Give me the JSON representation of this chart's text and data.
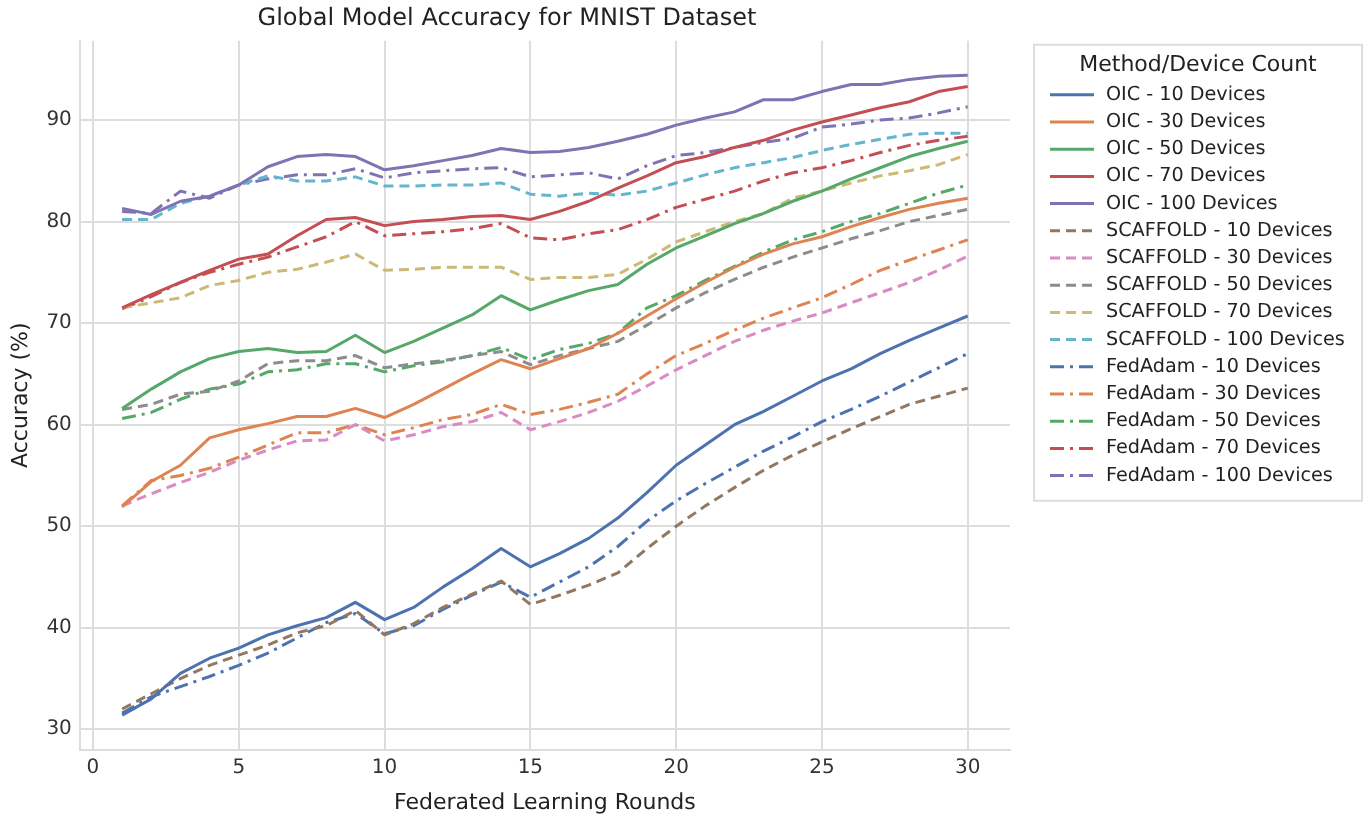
{
  "chart_data": {
    "type": "line",
    "title": "Global Model Accuracy for MNIST Dataset",
    "xlabel": "Federated Learning Rounds",
    "ylabel": "Accuracy (%)",
    "legend_title": "Method/Device Count",
    "x": [
      1,
      2,
      3,
      4,
      5,
      6,
      7,
      8,
      9,
      10,
      11,
      12,
      13,
      14,
      15,
      16,
      17,
      18,
      19,
      20,
      21,
      22,
      23,
      24,
      25,
      26,
      27,
      28,
      29,
      30
    ],
    "xlim": [
      -0.45,
      31.45
    ],
    "xticks": [
      0,
      5,
      10,
      15,
      20,
      25,
      30
    ],
    "ylim": [
      28,
      97.8
    ],
    "yticks": [
      30,
      40,
      50,
      60,
      70,
      80,
      90
    ],
    "grid": true,
    "legend": "right",
    "marker": "none",
    "series": [
      {
        "name": "OIC - 10 Devices",
        "color": "#4c72b0",
        "line_style": "solid",
        "values": [
          31.4,
          33,
          35.5,
          37,
          38,
          39.3,
          40.2,
          41,
          42.5,
          40.8,
          42,
          44,
          45.8,
          47.8,
          46,
          47.3,
          48.8,
          50.8,
          53.3,
          56,
          58,
          60,
          61.3,
          62.8,
          64.3,
          65.5,
          67,
          68.3,
          69.5,
          70.7
        ]
      },
      {
        "name": "OIC - 30 Devices",
        "color": "#dd8452",
        "line_style": "solid",
        "values": [
          51.9,
          54.4,
          56,
          58.7,
          59.5,
          60.1,
          60.8,
          60.8,
          61.6,
          60.7,
          62,
          63.5,
          65,
          66.4,
          65.5,
          66.5,
          67.5,
          69,
          70.7,
          72.4,
          74,
          75.5,
          76.8,
          77.8,
          78.5,
          79.5,
          80.4,
          81.2,
          81.8,
          82.3
        ]
      },
      {
        "name": "OIC - 50 Devices",
        "color": "#55a868",
        "line_style": "solid",
        "values": [
          61.6,
          63.5,
          65.2,
          66.5,
          67.2,
          67.5,
          67.1,
          67.2,
          68.8,
          67.1,
          68.2,
          69.5,
          70.8,
          72.7,
          71.3,
          72.3,
          73.2,
          73.8,
          75.8,
          77.4,
          78.6,
          79.8,
          80.8,
          82,
          83,
          84.2,
          85.3,
          86.4,
          87.2,
          87.9
        ]
      },
      {
        "name": "OIC - 70 Devices",
        "color": "#c44e52",
        "line_style": "solid",
        "values": [
          71.5,
          72.8,
          74,
          75.2,
          76.3,
          76.8,
          78.6,
          80.2,
          80.4,
          79.6,
          80,
          80.2,
          80.5,
          80.6,
          80.2,
          81,
          82,
          83.3,
          84.5,
          85.8,
          86.4,
          87.3,
          88,
          89,
          89.8,
          90.5,
          91.2,
          91.8,
          92.8,
          93.3
        ]
      },
      {
        "name": "OIC - 100 Devices",
        "color": "#8172b3",
        "line_style": "solid",
        "values": [
          81.3,
          80.7,
          82,
          82.5,
          83.6,
          85.4,
          86.4,
          86.6,
          86.4,
          85.1,
          85.5,
          86,
          86.5,
          87.2,
          86.8,
          86.9,
          87.3,
          87.9,
          88.6,
          89.5,
          90.2,
          90.8,
          92,
          92,
          92.8,
          93.5,
          93.5,
          94,
          94.3,
          94.4
        ]
      },
      {
        "name": "SCAFFOLD - 10 Devices",
        "color": "#937860",
        "line_style": "dashed",
        "values": [
          32,
          33.5,
          35,
          36.3,
          37.3,
          38.3,
          39.5,
          40.2,
          41.7,
          39.3,
          40.4,
          42,
          43.3,
          44.6,
          42.3,
          43.2,
          44.2,
          45.4,
          47.8,
          50,
          52,
          53.8,
          55.5,
          57,
          58.3,
          59.6,
          60.8,
          62,
          62.8,
          63.6
        ]
      },
      {
        "name": "SCAFFOLD - 30 Devices",
        "color": "#da8bc3",
        "line_style": "dashed",
        "values": [
          52,
          53.2,
          54.3,
          55.3,
          56.5,
          57.5,
          58.4,
          58.5,
          60,
          58.4,
          59,
          59.8,
          60.3,
          61.2,
          59.5,
          60.3,
          61.2,
          62.3,
          63.8,
          65.4,
          66.8,
          68.2,
          69.3,
          70.2,
          71,
          72,
          73,
          74,
          75.2,
          76.6
        ]
      },
      {
        "name": "SCAFFOLD - 50 Devices",
        "color": "#8c8c8c",
        "line_style": "dashed",
        "values": [
          61.5,
          62,
          63,
          63.3,
          64.3,
          66,
          66.3,
          66.3,
          66.8,
          65.6,
          66,
          66.3,
          66.8,
          67.2,
          65.9,
          66.8,
          67.5,
          68.2,
          69.8,
          71.5,
          73,
          74.3,
          75.5,
          76.5,
          77.4,
          78.3,
          79.1,
          80,
          80.6,
          81.2
        ]
      },
      {
        "name": "SCAFFOLD - 70 Devices",
        "color": "#ccb974",
        "line_style": "dashed",
        "values": [
          71.5,
          72,
          72.5,
          73.7,
          74.2,
          75,
          75.3,
          76,
          76.8,
          75.2,
          75.3,
          75.5,
          75.5,
          75.5,
          74.3,
          74.5,
          74.5,
          74.8,
          76.3,
          78,
          79,
          80,
          80.8,
          82.3,
          83,
          83.8,
          84.5,
          85,
          85.6,
          86.6
        ]
      },
      {
        "name": "SCAFFOLD - 100 Devices",
        "color": "#64b5cd",
        "line_style": "dashed",
        "values": [
          80.2,
          80.2,
          81.8,
          82.5,
          83.6,
          84.5,
          84,
          84,
          84.4,
          83.5,
          83.5,
          83.6,
          83.6,
          83.8,
          82.7,
          82.5,
          82.8,
          82.6,
          83,
          83.8,
          84.6,
          85.3,
          85.8,
          86.3,
          87,
          87.6,
          88.1,
          88.6,
          88.7,
          88.7
        ]
      },
      {
        "name": "FedAdam - 10 Devices",
        "color": "#4c72b0",
        "line_style": "dashdot",
        "values": [
          31.6,
          33.2,
          34.2,
          35.2,
          36.3,
          37.5,
          39,
          40.5,
          41.4,
          39.4,
          40.2,
          41.8,
          43.2,
          44.5,
          43,
          44.5,
          46,
          48,
          50.5,
          52.5,
          54.2,
          55.8,
          57.4,
          58.8,
          60.3,
          61.5,
          62.8,
          64.2,
          65.6,
          67
        ]
      },
      {
        "name": "FedAdam - 30 Devices",
        "color": "#dd8452",
        "line_style": "dashdot",
        "values": [
          52,
          54.5,
          55,
          55.7,
          56.8,
          58,
          59.2,
          59.2,
          60,
          59,
          59.7,
          60.5,
          61,
          62,
          61,
          61.5,
          62.2,
          63,
          65,
          66.8,
          68,
          69.3,
          70.5,
          71.5,
          72.5,
          73.8,
          75.2,
          76.2,
          77.2,
          78.2
        ]
      },
      {
        "name": "FedAdam - 50 Devices",
        "color": "#55a868",
        "line_style": "dashdot",
        "values": [
          60.6,
          61.2,
          62.5,
          63.5,
          64,
          65.2,
          65.4,
          66,
          66,
          65.2,
          65.8,
          66.2,
          66.8,
          67.6,
          66.4,
          67.4,
          68,
          69,
          71.5,
          72.7,
          74.2,
          75.6,
          77,
          78.2,
          79,
          80,
          80.8,
          81.8,
          82.8,
          83.6
        ]
      },
      {
        "name": "FedAdam - 70 Devices",
        "color": "#c44e52",
        "line_style": "dashdot",
        "values": [
          71.4,
          72.6,
          74,
          75,
          75.8,
          76.5,
          77.5,
          78.5,
          80,
          78.6,
          78.8,
          79,
          79.3,
          79.8,
          78.4,
          78.2,
          78.8,
          79.2,
          80.2,
          81.4,
          82.2,
          83,
          84,
          84.8,
          85.3,
          86,
          86.8,
          87.5,
          88,
          88.4
        ]
      },
      {
        "name": "FedAdam - 100 Devices",
        "color": "#8172b3",
        "line_style": "dashdot",
        "values": [
          81,
          80.8,
          83,
          82.3,
          83.6,
          84.2,
          84.6,
          84.6,
          85.2,
          84.3,
          84.8,
          85,
          85.2,
          85.3,
          84.4,
          84.6,
          84.8,
          84.2,
          85.5,
          86.5,
          86.8,
          87.3,
          87.8,
          88.2,
          89.3,
          89.6,
          90,
          90.2,
          90.7,
          91.3
        ]
      }
    ]
  }
}
